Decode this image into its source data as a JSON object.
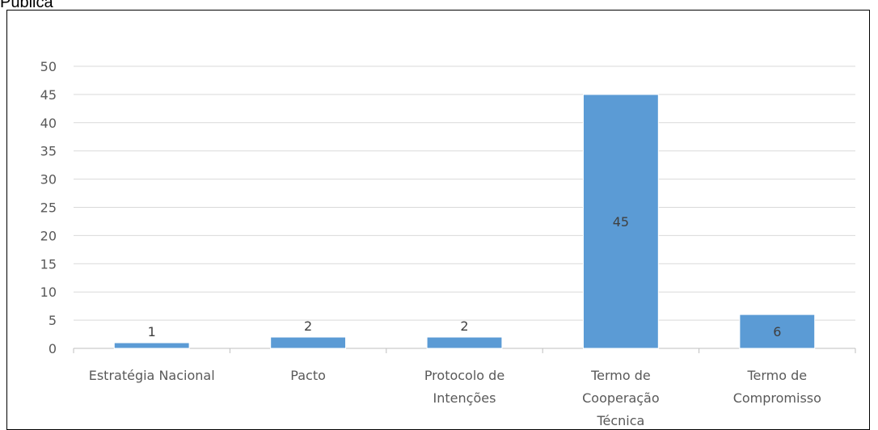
{
  "header": {
    "fragment": "Pública"
  },
  "chart_data": {
    "type": "bar",
    "categories": [
      [
        "Estratégia Nacional"
      ],
      [
        "Pacto"
      ],
      [
        "Protocolo de",
        "Intenções"
      ],
      [
        "Termo de",
        "Cooperação",
        "Técnica"
      ],
      [
        "Termo de",
        "Compromisso"
      ]
    ],
    "values": [
      1,
      2,
      2,
      45,
      6
    ],
    "data_labels": [
      "1",
      "2",
      "2",
      "45",
      "6"
    ],
    "ylim": [
      0,
      50
    ],
    "yticks": [
      0,
      5,
      10,
      15,
      20,
      25,
      30,
      35,
      40,
      45,
      50
    ],
    "grid": true,
    "colors": {
      "bar": "#5b9bd5",
      "grid": "#d9d9d9",
      "axis": "#bfbfbf"
    }
  }
}
